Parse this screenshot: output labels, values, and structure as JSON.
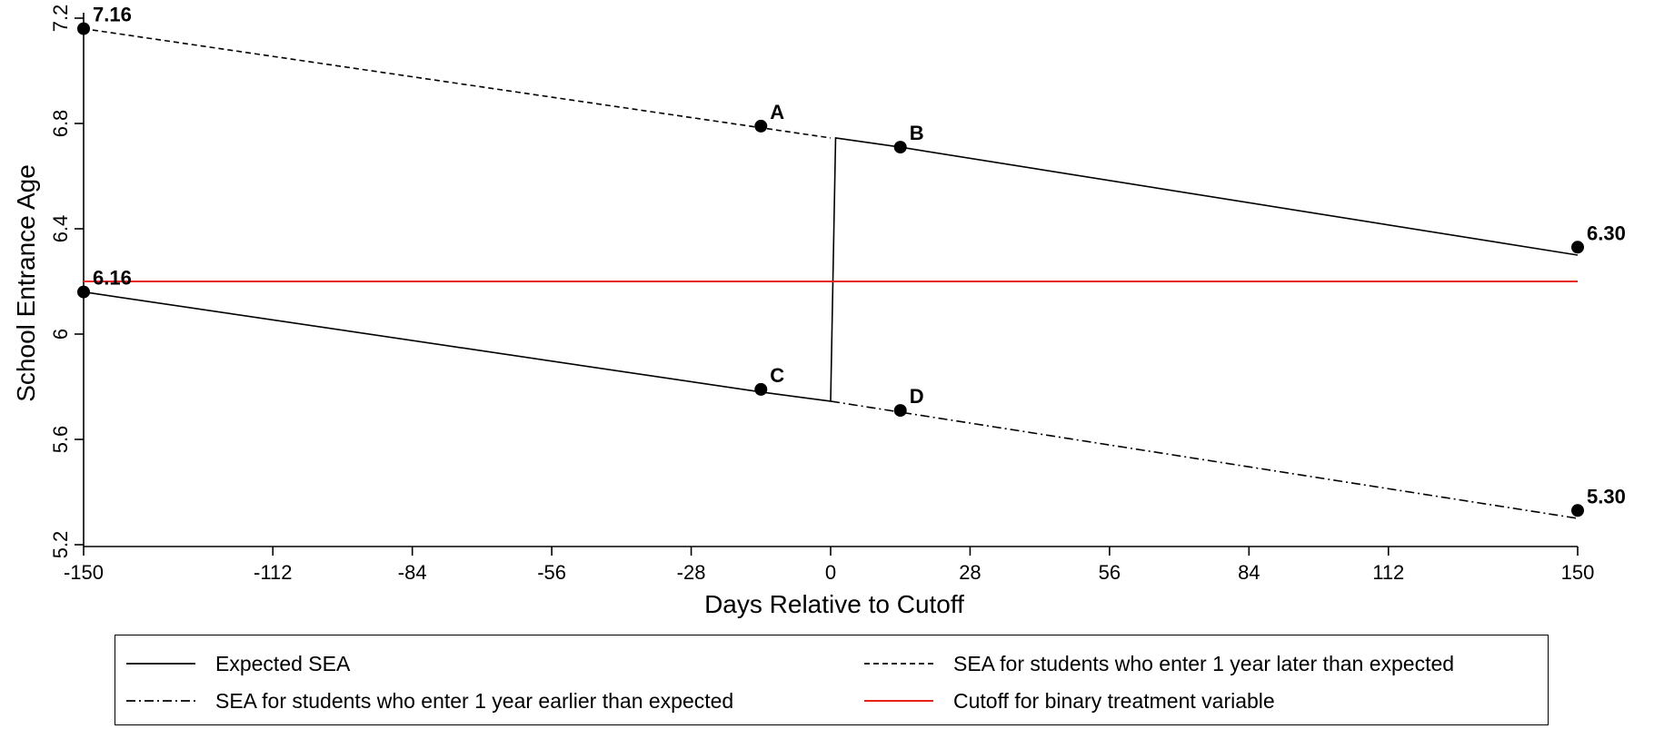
{
  "chart_data": {
    "type": "line",
    "xlabel": "Days Relative to Cutoff",
    "ylabel": "School Entrance Age",
    "xlim": [
      -150,
      150
    ],
    "ylim": [
      5.2,
      7.2
    ],
    "xticks": [
      -150,
      -112,
      -84,
      -56,
      -28,
      0,
      28,
      56,
      84,
      112,
      150
    ],
    "yticks": [
      5.2,
      5.6,
      6,
      6.4,
      6.8,
      7.2
    ],
    "ytick_labels": [
      "5.2",
      "5.6",
      "6",
      "6.4",
      "6.8",
      "7.2"
    ],
    "grid": false,
    "legend_position": "bottom",
    "series": [
      {
        "name": "Expected SEA",
        "style": "solid",
        "color": "#000000",
        "x": [
          -150,
          -14,
          0,
          1,
          14,
          150
        ],
        "y": [
          6.16,
          5.78,
          5.745,
          6.745,
          6.71,
          6.3
        ]
      },
      {
        "name": "SEA for students who enter 1 year later than expected",
        "style": "dashed",
        "color": "#000000",
        "x": [
          -150,
          0
        ],
        "y": [
          7.16,
          6.745
        ]
      },
      {
        "name": "SEA for students who enter 1 year earlier than expected",
        "style": "dashdot",
        "color": "#000000",
        "x": [
          0,
          150
        ],
        "y": [
          5.745,
          5.3
        ]
      },
      {
        "name": "Cutoff for binary treatment variable",
        "style": "solid",
        "color": "#e8211a",
        "x": [
          -150,
          150
        ],
        "y": [
          6.2,
          6.2
        ]
      }
    ],
    "points": [
      {
        "label": "7.16",
        "x": -150,
        "y": 7.16
      },
      {
        "label": "6.16",
        "x": -150,
        "y": 6.16
      },
      {
        "label": "A",
        "x": -14,
        "y": 6.79
      },
      {
        "label": "B",
        "x": 14,
        "y": 6.71
      },
      {
        "label": "C",
        "x": -14,
        "y": 5.79
      },
      {
        "label": "D",
        "x": 14,
        "y": 5.71
      },
      {
        "label": "6.30",
        "x": 150,
        "y": 6.33
      },
      {
        "label": "5.30",
        "x": 150,
        "y": 5.33
      }
    ]
  },
  "legend": {
    "items": [
      {
        "label": "Expected SEA",
        "style": "solid",
        "color": "#000000"
      },
      {
        "label": "SEA for students who enter 1 year later than expected",
        "style": "dashed",
        "color": "#000000"
      },
      {
        "label": "SEA for students who enter 1 year earlier than expected",
        "style": "dashdot",
        "color": "#000000"
      },
      {
        "label": "Cutoff for binary treatment variable",
        "style": "solid",
        "color": "#e8211a"
      }
    ]
  }
}
